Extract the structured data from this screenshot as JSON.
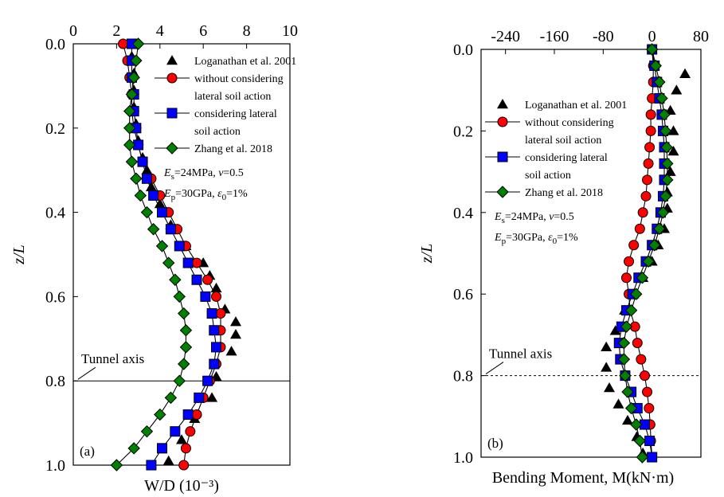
{
  "chart_data": [
    {
      "type": "line",
      "panel_label": "(a)",
      "xlabel": "W/D (10⁻³)",
      "ylabel": "z/L",
      "xlim": [
        0,
        10
      ],
      "ylim": [
        0,
        1
      ],
      "y_inverted": true,
      "x_axis_position": "top",
      "x_ticks": [
        "0",
        "2",
        "4",
        "6",
        "8",
        "10"
      ],
      "y_ticks": [
        "0.0",
        "0.2",
        "0.4",
        "0.6",
        "0.8",
        "1.0"
      ],
      "annotation_tunnel": "Tunnel axis",
      "tunnel_axis_z": 0.8,
      "tunnel_line_style": "solid",
      "legend": [
        "Loganathan et al. 2001",
        "without considering",
        "lateral soil action",
        "considering lateral",
        "soil action",
        "Zhang et al. 2018"
      ],
      "params_line1": "Es=24MPa, v=0.5",
      "params_line2": "Ep=30GPa, ε0=1%",
      "series": [
        {
          "name": "Loganathan et al. 2001",
          "marker": "triangle",
          "color": "#000000",
          "line": false,
          "points": [
            [
              2.7,
              0.03
            ],
            [
              2.8,
              0.07
            ],
            [
              2.8,
              0.11
            ],
            [
              2.8,
              0.15
            ],
            [
              2.9,
              0.19
            ],
            [
              3.0,
              0.23
            ],
            [
              3.2,
              0.27
            ],
            [
              3.4,
              0.3
            ],
            [
              3.6,
              0.34
            ],
            [
              4.0,
              0.38
            ],
            [
              4.5,
              0.43
            ],
            [
              5.2,
              0.48
            ],
            [
              6.0,
              0.52
            ],
            [
              6.3,
              0.55
            ],
            [
              6.6,
              0.58
            ],
            [
              7.0,
              0.63
            ],
            [
              7.5,
              0.66
            ],
            [
              7.5,
              0.69
            ],
            [
              7.3,
              0.73
            ],
            [
              6.6,
              0.79
            ],
            [
              6.4,
              0.84
            ],
            [
              5.6,
              0.89
            ],
            [
              5.0,
              0.94
            ],
            [
              4.4,
              0.99
            ]
          ]
        },
        {
          "name": "without considering lateral soil action",
          "marker": "circle",
          "color": "#ff0000",
          "line": true,
          "points": [
            [
              2.3,
              0.0
            ],
            [
              2.5,
              0.04
            ],
            [
              2.6,
              0.08
            ],
            [
              2.7,
              0.12
            ],
            [
              2.7,
              0.16
            ],
            [
              2.8,
              0.2
            ],
            [
              3.0,
              0.24
            ],
            [
              3.2,
              0.28
            ],
            [
              3.6,
              0.32
            ],
            [
              4.0,
              0.36
            ],
            [
              4.4,
              0.4
            ],
            [
              4.8,
              0.44
            ],
            [
              5.2,
              0.48
            ],
            [
              5.7,
              0.52
            ],
            [
              6.2,
              0.56
            ],
            [
              6.6,
              0.6
            ],
            [
              6.8,
              0.64
            ],
            [
              6.8,
              0.68
            ],
            [
              6.8,
              0.72
            ],
            [
              6.6,
              0.76
            ],
            [
              6.3,
              0.8
            ],
            [
              6.0,
              0.84
            ],
            [
              5.7,
              0.88
            ],
            [
              5.4,
              0.92
            ],
            [
              5.2,
              0.96
            ],
            [
              5.1,
              1.0
            ]
          ]
        },
        {
          "name": "considering lateral soil action",
          "marker": "square",
          "color": "#0000ff",
          "line": true,
          "points": [
            [
              2.7,
              0.0
            ],
            [
              2.7,
              0.04
            ],
            [
              2.7,
              0.08
            ],
            [
              2.8,
              0.12
            ],
            [
              2.8,
              0.16
            ],
            [
              2.9,
              0.2
            ],
            [
              3.0,
              0.24
            ],
            [
              3.2,
              0.28
            ],
            [
              3.4,
              0.32
            ],
            [
              3.7,
              0.36
            ],
            [
              4.1,
              0.4
            ],
            [
              4.5,
              0.44
            ],
            [
              4.9,
              0.48
            ],
            [
              5.3,
              0.52
            ],
            [
              5.7,
              0.56
            ],
            [
              6.1,
              0.6
            ],
            [
              6.4,
              0.64
            ],
            [
              6.5,
              0.68
            ],
            [
              6.6,
              0.72
            ],
            [
              6.5,
              0.76
            ],
            [
              6.2,
              0.8
            ],
            [
              5.8,
              0.84
            ],
            [
              5.3,
              0.88
            ],
            [
              4.7,
              0.92
            ],
            [
              4.1,
              0.96
            ],
            [
              3.6,
              1.0
            ]
          ]
        },
        {
          "name": "Zhang et al. 2018",
          "marker": "diamond",
          "color": "#008000",
          "line": true,
          "points": [
            [
              3.0,
              0.0
            ],
            [
              2.9,
              0.04
            ],
            [
              2.8,
              0.08
            ],
            [
              2.7,
              0.12
            ],
            [
              2.6,
              0.16
            ],
            [
              2.6,
              0.2
            ],
            [
              2.6,
              0.24
            ],
            [
              2.7,
              0.28
            ],
            [
              2.9,
              0.32
            ],
            [
              3.1,
              0.36
            ],
            [
              3.4,
              0.4
            ],
            [
              3.7,
              0.44
            ],
            [
              4.1,
              0.48
            ],
            [
              4.4,
              0.52
            ],
            [
              4.7,
              0.56
            ],
            [
              4.9,
              0.6
            ],
            [
              5.1,
              0.64
            ],
            [
              5.2,
              0.68
            ],
            [
              5.2,
              0.72
            ],
            [
              5.1,
              0.76
            ],
            [
              4.9,
              0.8
            ],
            [
              4.5,
              0.84
            ],
            [
              4.0,
              0.88
            ],
            [
              3.4,
              0.92
            ],
            [
              2.8,
              0.96
            ],
            [
              2.0,
              1.0
            ]
          ]
        }
      ]
    },
    {
      "type": "line",
      "panel_label": "(b)",
      "xlabel": "Bending Moment, M(kN·m)",
      "ylabel": "z/L",
      "xlim": [
        -280,
        80
      ],
      "ylim": [
        0,
        1
      ],
      "y_inverted": true,
      "x_axis_position": "top",
      "x_ticks": [
        "-240",
        "-160",
        "-80",
        "0",
        "80"
      ],
      "x_tick_values": [
        -240,
        -160,
        -80,
        0,
        80
      ],
      "y_ticks": [
        "0.0",
        "0.2",
        "0.4",
        "0.6",
        "0.8",
        "1.0"
      ],
      "annotation_tunnel": "Tunnel axis",
      "tunnel_axis_z": 0.8,
      "tunnel_line_style": "dashed",
      "legend": [
        "Loganathan et al. 2001",
        "without considering",
        "lateral soil action",
        "considering lateral",
        "soil action",
        "Zhang et al. 2018"
      ],
      "params_line1": "Es=24MPa, v=0.5",
      "params_line2": "Ep=30GPa, ε0=1%",
      "series": [
        {
          "name": "Loganathan et al. 2001",
          "marker": "triangle",
          "color": "#000000",
          "line": false,
          "points": [
            [
              54,
              0.06
            ],
            [
              40,
              0.1
            ],
            [
              30,
              0.15
            ],
            [
              35,
              0.2
            ],
            [
              35,
              0.25
            ],
            [
              30,
              0.3
            ],
            [
              25,
              0.35
            ],
            [
              25,
              0.39
            ],
            [
              20,
              0.44
            ],
            [
              10,
              0.48
            ],
            [
              0,
              0.52
            ],
            [
              -15,
              0.56
            ],
            [
              -30,
              0.6
            ],
            [
              -45,
              0.64
            ],
            [
              -60,
              0.69
            ],
            [
              -75,
              0.73
            ],
            [
              -75,
              0.78
            ],
            [
              -70,
              0.83
            ],
            [
              -55,
              0.87
            ],
            [
              -40,
              0.91
            ],
            [
              -25,
              0.95
            ],
            [
              -15,
              0.99
            ]
          ]
        },
        {
          "name": "without considering lateral soil action",
          "marker": "circle",
          "color": "#ff0000",
          "line": true,
          "points": [
            [
              0,
              0.0
            ],
            [
              2,
              0.04
            ],
            [
              2,
              0.08
            ],
            [
              0,
              0.12
            ],
            [
              -2,
              0.16
            ],
            [
              -2,
              0.2
            ],
            [
              -4,
              0.24
            ],
            [
              -6,
              0.28
            ],
            [
              -8,
              0.32
            ],
            [
              -10,
              0.36
            ],
            [
              -15,
              0.4
            ],
            [
              -20,
              0.44
            ],
            [
              -30,
              0.48
            ],
            [
              -38,
              0.52
            ],
            [
              -42,
              0.56
            ],
            [
              -38,
              0.6
            ],
            [
              -36,
              0.64
            ],
            [
              -28,
              0.68
            ],
            [
              -24,
              0.72
            ],
            [
              -18,
              0.76
            ],
            [
              -12,
              0.8
            ],
            [
              -8,
              0.84
            ],
            [
              -5,
              0.88
            ],
            [
              -3,
              0.92
            ],
            [
              -2,
              0.96
            ],
            [
              0,
              1.0
            ]
          ]
        },
        {
          "name": "considering lateral soil action",
          "marker": "square",
          "color": "#0000ff",
          "line": true,
          "points": [
            [
              0,
              0.0
            ],
            [
              4,
              0.04
            ],
            [
              8,
              0.08
            ],
            [
              12,
              0.12
            ],
            [
              16,
              0.16
            ],
            [
              18,
              0.2
            ],
            [
              20,
              0.24
            ],
            [
              20,
              0.28
            ],
            [
              20,
              0.32
            ],
            [
              18,
              0.36
            ],
            [
              14,
              0.4
            ],
            [
              8,
              0.44
            ],
            [
              0,
              0.48
            ],
            [
              -10,
              0.52
            ],
            [
              -22,
              0.56
            ],
            [
              -32,
              0.6
            ],
            [
              -42,
              0.64
            ],
            [
              -50,
              0.68
            ],
            [
              -54,
              0.72
            ],
            [
              -52,
              0.76
            ],
            [
              -44,
              0.8
            ],
            [
              -34,
              0.84
            ],
            [
              -24,
              0.88
            ],
            [
              -12,
              0.92
            ],
            [
              -4,
              0.96
            ],
            [
              0,
              1.0
            ]
          ]
        },
        {
          "name": "Zhang et al. 2018",
          "marker": "diamond",
          "color": "#008000",
          "line": true,
          "points": [
            [
              0,
              0.0
            ],
            [
              6,
              0.04
            ],
            [
              12,
              0.08
            ],
            [
              16,
              0.12
            ],
            [
              20,
              0.16
            ],
            [
              22,
              0.2
            ],
            [
              24,
              0.24
            ],
            [
              25,
              0.28
            ],
            [
              25,
              0.32
            ],
            [
              22,
              0.36
            ],
            [
              18,
              0.4
            ],
            [
              12,
              0.44
            ],
            [
              4,
              0.48
            ],
            [
              -6,
              0.52
            ],
            [
              -16,
              0.56
            ],
            [
              -26,
              0.6
            ],
            [
              -34,
              0.64
            ],
            [
              -42,
              0.68
            ],
            [
              -46,
              0.72
            ],
            [
              -46,
              0.76
            ],
            [
              -44,
              0.8
            ],
            [
              -40,
              0.84
            ],
            [
              -34,
              0.88
            ],
            [
              -26,
              0.92
            ],
            [
              -20,
              0.96
            ],
            [
              -16,
              1.0
            ]
          ]
        }
      ]
    }
  ]
}
